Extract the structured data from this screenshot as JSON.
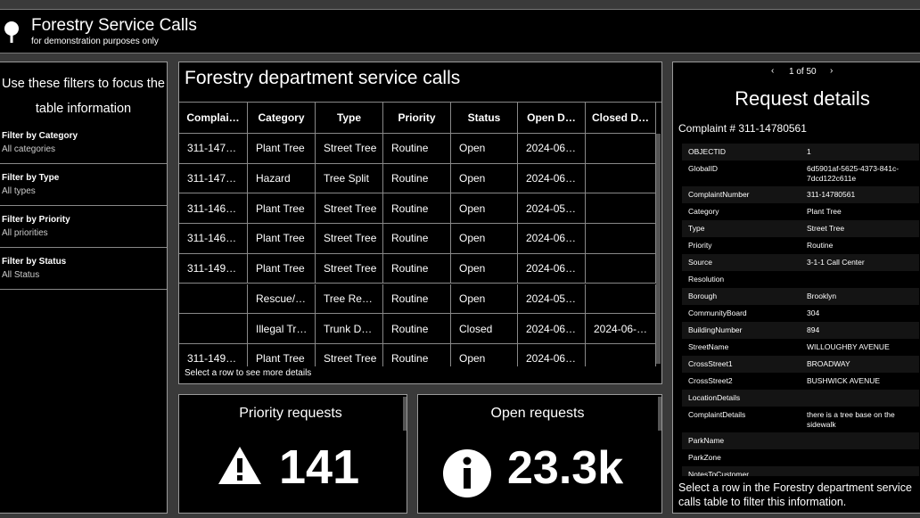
{
  "header": {
    "title": "Forestry Service Calls",
    "subtitle": "for demonstration purposes only"
  },
  "filters": {
    "intro": "Use these filters to focus the table information",
    "items": [
      {
        "label": "Filter by Category",
        "value": "All categories"
      },
      {
        "label": "Filter by Type",
        "value": "All types"
      },
      {
        "label": "Filter by Priority",
        "value": "All priorities"
      },
      {
        "label": "Filter by Status",
        "value": "All Status"
      }
    ]
  },
  "table": {
    "title": "Forestry department service calls",
    "columns": [
      "Complai…",
      "Category",
      "Type",
      "Priority",
      "Status",
      "Open D…",
      "Closed D…"
    ],
    "rows": [
      [
        "311-147…",
        "Plant Tree",
        "Street Tree",
        "Routine",
        "Open",
        "2024-06…",
        null
      ],
      [
        "311-147…",
        "Hazard",
        "Tree Split",
        "Routine",
        "Open",
        "2024-06…",
        null
      ],
      [
        "311-146…",
        "Plant Tree",
        "Street Tree",
        "Routine",
        "Open",
        "2024-05…",
        null
      ],
      [
        "311-146…",
        "Plant Tree",
        "Street Tree",
        "Routine",
        "Open",
        "2024-06…",
        null
      ],
      [
        "311-149…",
        "Plant Tree",
        "Street Tree",
        "Routine",
        "Open",
        "2024-06…",
        null
      ],
      [
        null,
        "Rescue/…",
        "Tree Re…",
        "Routine",
        "Open",
        "2024-05…",
        null
      ],
      [
        null,
        "Illegal Tr…",
        "Trunk D…",
        "Routine",
        "Closed",
        "2024-06…",
        "2024-06-…"
      ],
      [
        "311-149…",
        "Plant Tree",
        "Street Tree",
        "Routine",
        "Open",
        "2024-06…",
        null
      ]
    ],
    "footer": "Select a row to see more details"
  },
  "cards": [
    {
      "title": "Priority requests",
      "value": "141"
    },
    {
      "title": "Open requests",
      "value": "23.3k"
    }
  ],
  "details": {
    "pager": "1 of 50",
    "title": "Request details",
    "complaint": "Complaint # 311-14780561",
    "fields": [
      [
        "OBJECTID",
        "1"
      ],
      [
        "GlobalID",
        "6d5901af-5625-4373-841c-7dcd122c611e"
      ],
      [
        "ComplaintNumber",
        "311-14780561"
      ],
      [
        "Category",
        "Plant Tree"
      ],
      [
        "Type",
        "Street Tree"
      ],
      [
        "Priority",
        "Routine"
      ],
      [
        "Source",
        "3-1-1 Call Center"
      ],
      [
        "Resolution",
        null
      ],
      [
        "Borough",
        "Brooklyn"
      ],
      [
        "CommunityBoard",
        "304"
      ],
      [
        "BuildingNumber",
        "894"
      ],
      [
        "StreetName",
        "WILLOUGHBY AVENUE"
      ],
      [
        "CrossStreet1",
        "BROADWAY"
      ],
      [
        "CrossStreet2",
        "BUSHWICK AVENUE"
      ],
      [
        "LocationDetails",
        null
      ],
      [
        "ComplaintDetails",
        "there is a tree base on the sidewalk"
      ],
      [
        "ParkName",
        null
      ],
      [
        "ParkZone",
        null
      ],
      [
        "NotesToCustomer",
        null
      ]
    ],
    "footer": "Select a row in the Forestry department service calls table to filter this information."
  }
}
